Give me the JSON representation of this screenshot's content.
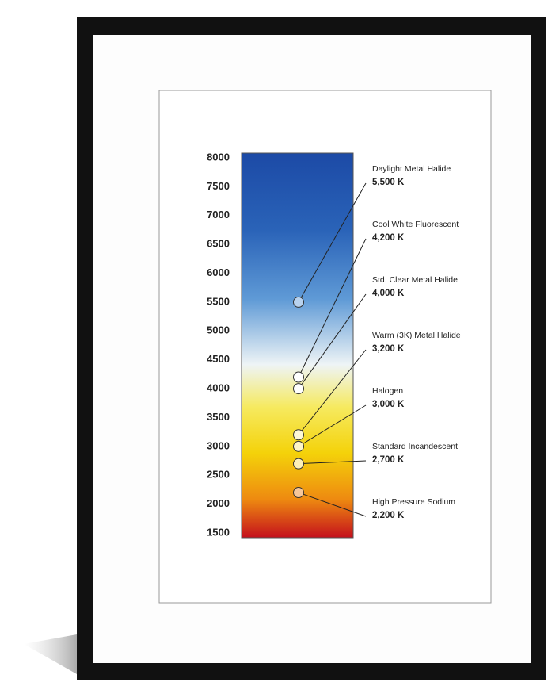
{
  "chart_data": {
    "type": "scatter",
    "categories": [
      "Daylight Metal Halide",
      "Cool White Fluorescent",
      "Std. Clear Metal Halide",
      "Warm (3K) Metal Halide",
      "Halogen",
      "Standard Incandescent",
      "High Pressure Sodium"
    ],
    "values": [
      5500,
      4200,
      4000,
      3200,
      3000,
      2700,
      2200
    ],
    "value_labels": [
      "5,500 K",
      "4,200 K",
      "4,000 K",
      "3,200 K",
      "3,000 K",
      "2,700 K",
      "2,200 K"
    ],
    "colors": [
      "#b8d2ee",
      "#ffffff",
      "#ffffff",
      "#fdf8d8",
      "#fdf5c8",
      "#fdf0b8",
      "#f6c79a"
    ],
    "ylim": [
      1500,
      8000
    ],
    "yticks": [
      1500,
      2000,
      2500,
      3000,
      3500,
      4000,
      4500,
      5000,
      5500,
      6000,
      6500,
      7000,
      7500,
      8000
    ]
  }
}
